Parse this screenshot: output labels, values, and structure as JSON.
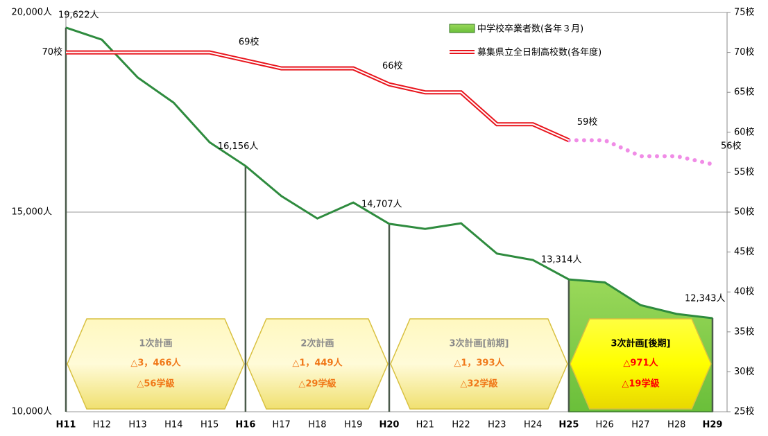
{
  "chart_data": {
    "type": "line",
    "categories": [
      "H11",
      "H12",
      "H13",
      "H14",
      "H15",
      "H16",
      "H17",
      "H18",
      "H19",
      "H20",
      "H21",
      "H22",
      "H23",
      "H24",
      "H25",
      "H26",
      "H27",
      "H28",
      "H29"
    ],
    "series": [
      {
        "name": "中学校卒業者数(各年３月)",
        "color": "#2e8b3e",
        "fill_color": "#8fd44e",
        "fill_from": "H25",
        "values": [
          19622,
          19320,
          18370,
          17740,
          16750,
          16156,
          15400,
          14840,
          15240,
          14707,
          14580,
          14720,
          13960,
          13800,
          13314,
          13240,
          12670,
          12450,
          12343
        ],
        "value_labels": [
          "19,622人",
          null,
          null,
          null,
          null,
          "16,156人",
          null,
          null,
          null,
          "14,707人",
          null,
          null,
          null,
          null,
          "13,314人",
          null,
          null,
          null,
          "12,343人"
        ]
      },
      {
        "name": "募集県立全日制高校数(各年度)",
        "color": "#e8141c",
        "axis": "y2",
        "projected_color": "#f08ce6",
        "values": [
          70,
          70,
          70,
          70,
          70,
          69,
          68,
          68,
          68,
          66,
          65,
          65,
          61,
          61,
          59,
          null,
          null,
          null,
          null
        ],
        "projected_values": [
          null,
          null,
          null,
          null,
          null,
          null,
          null,
          null,
          null,
          null,
          null,
          null,
          null,
          null,
          59,
          59,
          57,
          57,
          56
        ],
        "value_labels": [
          "70校",
          null,
          null,
          null,
          null,
          "69校",
          null,
          null,
          null,
          "66校",
          null,
          null,
          null,
          null,
          "59校",
          null,
          null,
          null,
          null
        ],
        "projected_value_labels": [
          null,
          null,
          null,
          null,
          null,
          null,
          null,
          null,
          null,
          null,
          null,
          null,
          null,
          null,
          null,
          null,
          null,
          null,
          "56校"
        ]
      }
    ],
    "ylim": [
      10000,
      20000
    ],
    "yticks": [
      {
        "value": 10000,
        "label": "10,000人"
      },
      {
        "value": 15000,
        "label": "15,000人"
      },
      {
        "value": 20000,
        "label": "20,000人"
      }
    ],
    "y2lim": [
      25,
      75
    ],
    "y2ticks": [
      {
        "value": 25,
        "label": "25校"
      },
      {
        "value": 30,
        "label": "30校"
      },
      {
        "value": 35,
        "label": "35校"
      },
      {
        "value": 40,
        "label": "40校"
      },
      {
        "value": 45,
        "label": "45校"
      },
      {
        "value": 50,
        "label": "50校"
      },
      {
        "value": 55,
        "label": "55校"
      },
      {
        "value": 60,
        "label": "60校"
      },
      {
        "value": 65,
        "label": "65校"
      },
      {
        "value": 70,
        "label": "70校"
      },
      {
        "value": 75,
        "label": "75校"
      }
    ],
    "grid": true,
    "plans": [
      {
        "start": "H11",
        "end": "H16",
        "name": "1次計画",
        "students": "△3，466人",
        "classes": "△56学級"
      },
      {
        "start": "H16",
        "end": "H20",
        "name": "2次計画",
        "students": "△1，449人",
        "classes": "△29学級"
      },
      {
        "start": "H20",
        "end": "H25",
        "name": "3次計画[前期]",
        "students": "△1，393人",
        "classes": "△32学級"
      },
      {
        "start": "H25",
        "end": "H29",
        "name": "3次計画[後期]",
        "students": "△971人",
        "classes": "△19学級",
        "highlight": true
      }
    ]
  }
}
